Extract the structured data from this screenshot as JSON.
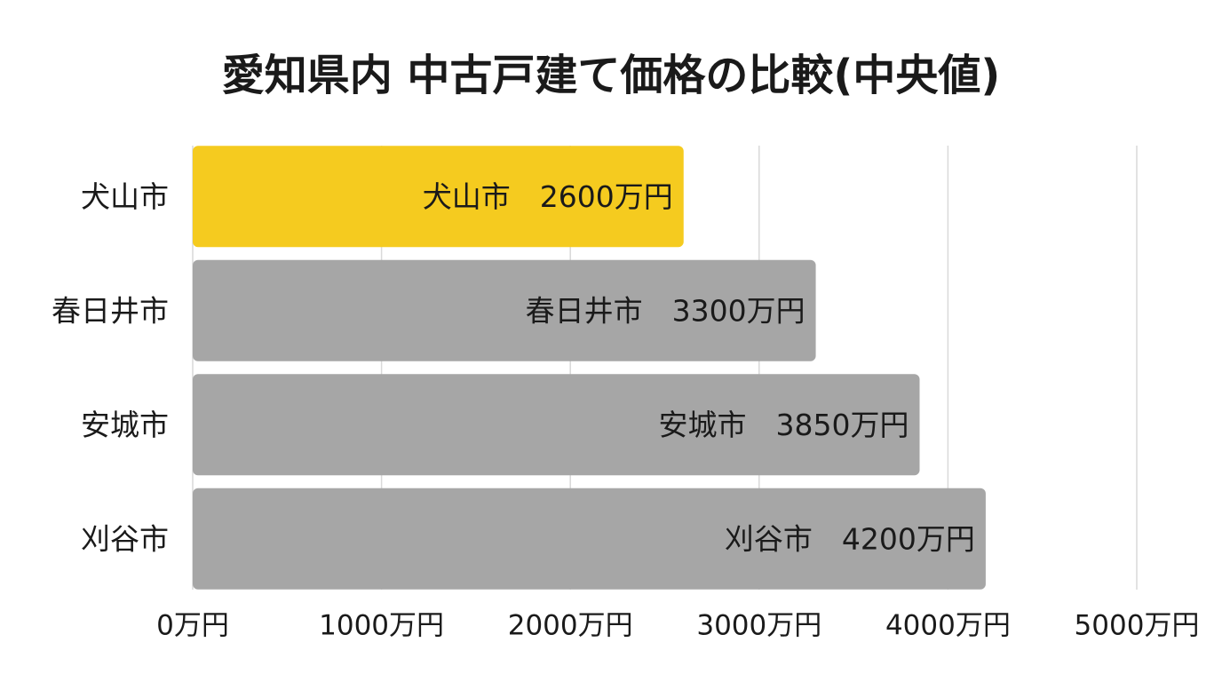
{
  "chart_data": {
    "type": "bar",
    "orientation": "horizontal",
    "title": "愛知県内 中古戸建て価格の比較(中央値)",
    "categories": [
      "犬山市",
      "春日井市",
      "安城市",
      "刈谷市"
    ],
    "values": [
      2600,
      3300,
      3850,
      4200
    ],
    "value_labels": [
      "犬山市　2600万円",
      "春日井市　3300万円",
      "安城市　3850万円",
      "刈谷市　4200万円"
    ],
    "colors": [
      "#f5cb1f",
      "#a6a6a6",
      "#a6a6a6",
      "#a6a6a6"
    ],
    "xlim": [
      0,
      5000
    ],
    "xticks": [
      {
        "value": 0,
        "label": "0万円"
      },
      {
        "value": 1000,
        "label": "1000万円"
      },
      {
        "value": 2000,
        "label": "2000万円"
      },
      {
        "value": 3000,
        "label": "3000万円"
      },
      {
        "value": 4000,
        "label": "4000万円"
      },
      {
        "value": 5000,
        "label": "5000万円"
      }
    ],
    "grid": true
  }
}
